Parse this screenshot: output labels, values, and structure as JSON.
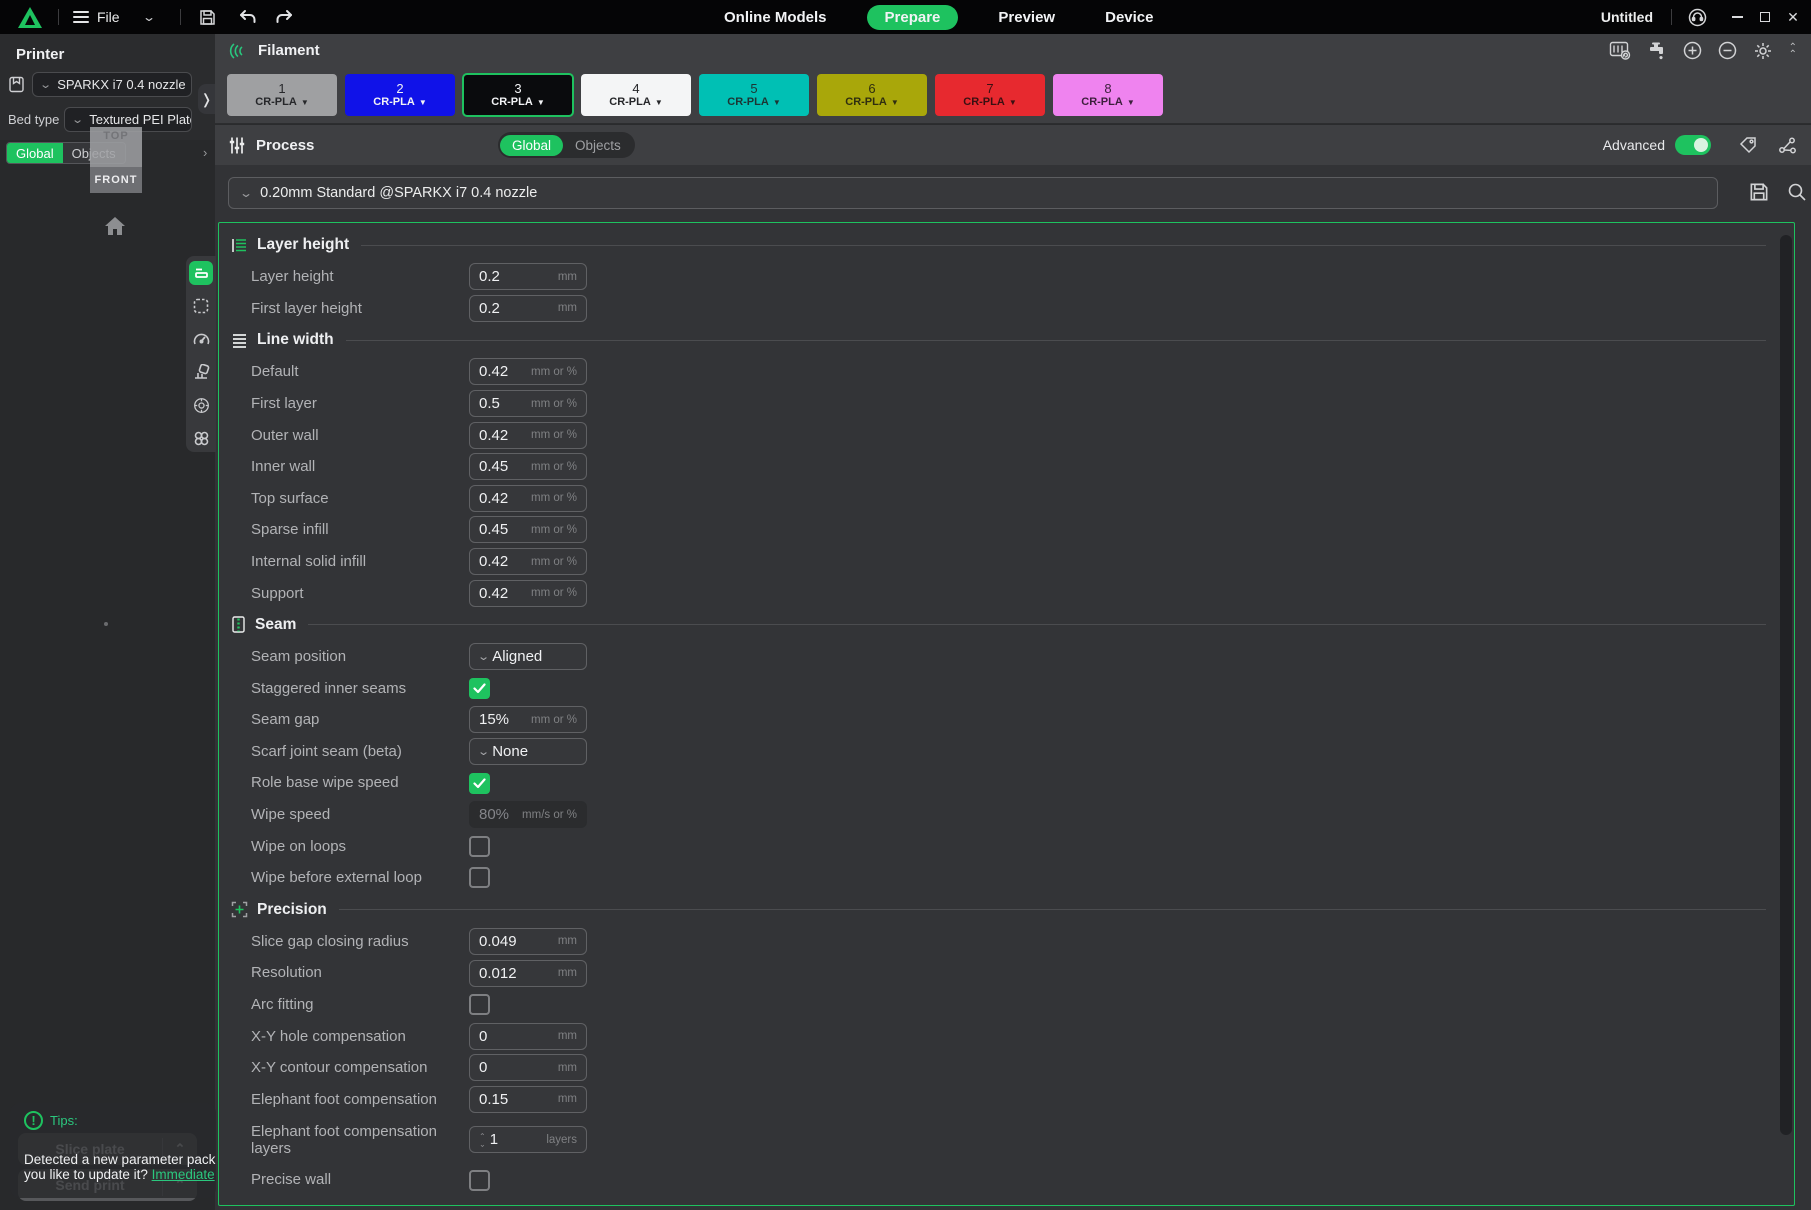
{
  "window": {
    "title": "Untitled"
  },
  "topbar": {
    "file_label": "File",
    "tabs": [
      {
        "label": "Online Models",
        "active": false
      },
      {
        "label": "Prepare",
        "active": true
      },
      {
        "label": "Preview",
        "active": false
      },
      {
        "label": "Device",
        "active": false
      }
    ]
  },
  "printer_panel": {
    "title": "Printer",
    "printer_preset": "SPARKX i7 0.4 nozzle",
    "bed_type_label": "Bed type",
    "bed_type_value": "Textured PEI Plate",
    "scope": {
      "global": "Global",
      "objects": "Objects"
    }
  },
  "viewport": {
    "cube_top": "TOP",
    "cube_front": "FRONT"
  },
  "filament": {
    "title": "Filament",
    "slots": [
      {
        "num": "1",
        "material": "CR-PLA",
        "bg": "#9fa0a2",
        "fg": "#26272a",
        "selected": false
      },
      {
        "num": "2",
        "material": "CR-PLA",
        "bg": "#1012e8",
        "fg": "#f2f3f5",
        "selected": false
      },
      {
        "num": "3",
        "material": "CR-PLA",
        "bg": "#0a0b0d",
        "fg": "#f2f3f5",
        "selected": true
      },
      {
        "num": "4",
        "material": "CR-PLA",
        "bg": "#f4f5f6",
        "fg": "#26272a",
        "selected": false
      },
      {
        "num": "5",
        "material": "CR-PLA",
        "bg": "#00c0b4",
        "fg": "#1d3533",
        "selected": false
      },
      {
        "num": "6",
        "material": "CR-PLA",
        "bg": "#a9a70a",
        "fg": "#2f2e10",
        "selected": false
      },
      {
        "num": "7",
        "material": "CR-PLA",
        "bg": "#e7292f",
        "fg": "#3a1012",
        "selected": false
      },
      {
        "num": "8",
        "material": "CR-PLA",
        "bg": "#ef83ef",
        "fg": "#3c1f3c",
        "selected": false
      }
    ]
  },
  "process": {
    "title": "Process",
    "scope": {
      "global": "Global",
      "objects": "Objects"
    },
    "advanced_label": "Advanced",
    "advanced_on": true,
    "preset": "0.20mm Standard @SPARKX i7 0.4 nozzle"
  },
  "settings": {
    "accent_color": "#1ec25f",
    "sections": [
      {
        "icon": "layer",
        "title": "Layer height",
        "rows": [
          {
            "label": "Layer height",
            "kind": "input",
            "value": "0.2",
            "unit": "mm"
          },
          {
            "label": "First layer height",
            "kind": "input",
            "value": "0.2",
            "unit": "mm"
          }
        ]
      },
      {
        "icon": "lines",
        "title": "Line width",
        "rows": [
          {
            "label": "Default",
            "kind": "input",
            "value": "0.42",
            "unit": "mm or %"
          },
          {
            "label": "First layer",
            "kind": "input",
            "value": "0.5",
            "unit": "mm or %"
          },
          {
            "label": "Outer wall",
            "kind": "input",
            "value": "0.42",
            "unit": "mm or %"
          },
          {
            "label": "Inner wall",
            "kind": "input",
            "value": "0.45",
            "unit": "mm or %"
          },
          {
            "label": "Top surface",
            "kind": "input",
            "value": "0.42",
            "unit": "mm or %"
          },
          {
            "label": "Sparse infill",
            "kind": "input",
            "value": "0.45",
            "unit": "mm or %"
          },
          {
            "label": "Internal solid infill",
            "kind": "input",
            "value": "0.42",
            "unit": "mm or %"
          },
          {
            "label": "Support",
            "kind": "input",
            "value": "0.42",
            "unit": "mm or %"
          }
        ]
      },
      {
        "icon": "seam",
        "title": "Seam",
        "rows": [
          {
            "label": "Seam position",
            "kind": "select",
            "value": "Aligned"
          },
          {
            "label": "Staggered inner seams",
            "kind": "checkbox",
            "checked": true
          },
          {
            "label": "Seam gap",
            "kind": "input",
            "value": "15%",
            "unit": "mm or %"
          },
          {
            "label": "Scarf joint seam (beta)",
            "kind": "select",
            "value": "None"
          },
          {
            "label": "Role base wipe speed",
            "kind": "checkbox",
            "checked": true
          },
          {
            "label": "Wipe speed",
            "kind": "input",
            "value": "80%",
            "unit": "mm/s or %",
            "disabled": true
          },
          {
            "label": "Wipe on loops",
            "kind": "checkbox",
            "checked": false
          },
          {
            "label": "Wipe before external loop",
            "kind": "checkbox",
            "checked": false
          }
        ]
      },
      {
        "icon": "precision",
        "title": "Precision",
        "rows": [
          {
            "label": "Slice gap closing radius",
            "kind": "input",
            "value": "0.049",
            "unit": "mm"
          },
          {
            "label": "Resolution",
            "kind": "input",
            "value": "0.012",
            "unit": "mm"
          },
          {
            "label": "Arc fitting",
            "kind": "checkbox",
            "checked": false
          },
          {
            "label": "X-Y hole compensation",
            "kind": "input",
            "value": "0",
            "unit": "mm"
          },
          {
            "label": "X-Y contour compensation",
            "kind": "input",
            "value": "0",
            "unit": "mm"
          },
          {
            "label": "Elephant foot compensation",
            "kind": "input",
            "value": "0.15",
            "unit": "mm"
          },
          {
            "label": "Elephant foot compensation layers",
            "kind": "spinner",
            "value": "1",
            "unit": "layers",
            "tall": true
          },
          {
            "label": "Precise wall",
            "kind": "checkbox",
            "checked": false
          }
        ]
      }
    ]
  },
  "tips": {
    "title": "Tips:",
    "line1": "Detected a new parameter packa",
    "line2": "you like to update it? ",
    "link": "Immediate "
  },
  "actions": {
    "slice": "Slice plate",
    "send": "Send print"
  }
}
